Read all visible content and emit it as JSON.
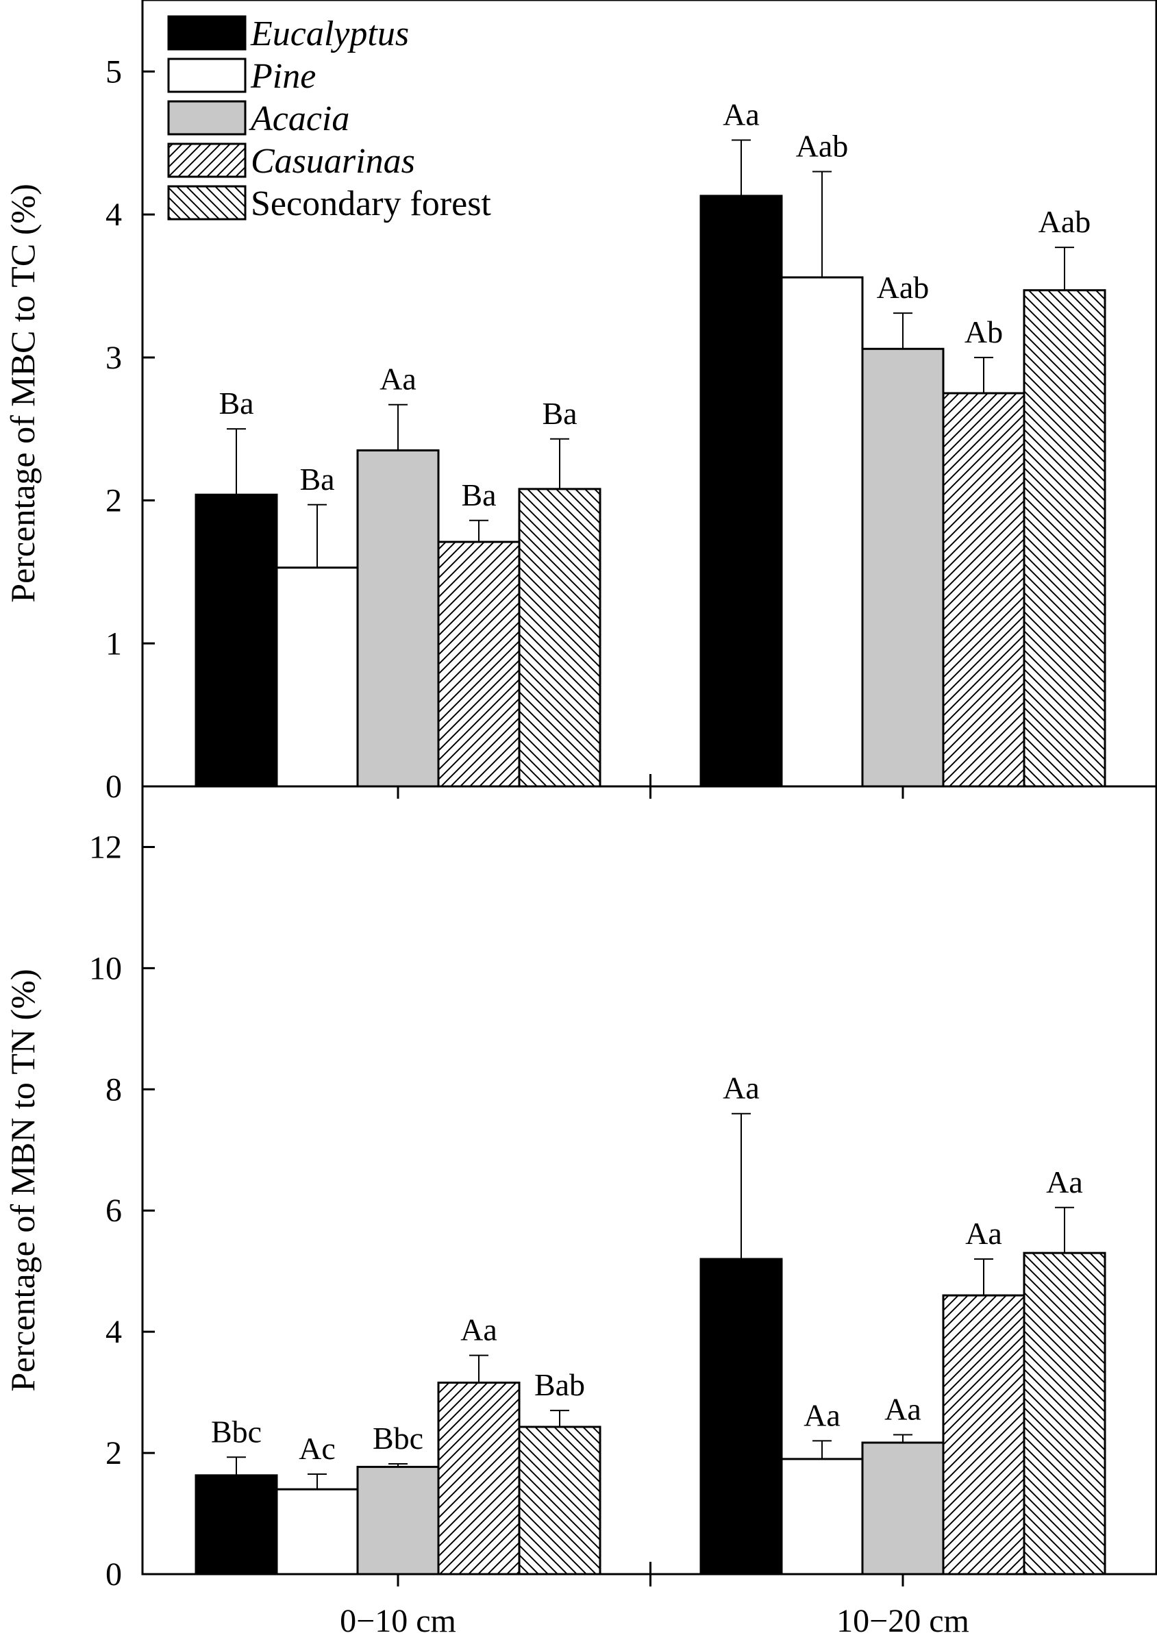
{
  "chart_data": [
    {
      "type": "bar",
      "panel": "top",
      "ylabel": "Percentage of MBC to TC (%)",
      "ylim": [
        0,
        5.5
      ],
      "yticks": [
        0,
        1,
        2,
        3,
        4,
        5
      ],
      "grid": false,
      "categories": [
        "0−10 cm",
        "10−20 cm"
      ],
      "series": [
        {
          "name": "Eucalyptus",
          "values": [
            2.04,
            4.13
          ],
          "errors": [
            0.46,
            0.39
          ],
          "labels": [
            "Ba",
            "Aa"
          ]
        },
        {
          "name": "Pine",
          "values": [
            1.53,
            3.56
          ],
          "errors": [
            0.44,
            0.74
          ],
          "labels": [
            "Ba",
            "Aab"
          ]
        },
        {
          "name": "Acacia",
          "values": [
            2.35,
            3.06
          ],
          "errors": [
            0.32,
            0.25
          ],
          "labels": [
            "Aa",
            "Aab"
          ]
        },
        {
          "name": "Casuarinas",
          "values": [
            1.71,
            2.75
          ],
          "errors": [
            0.15,
            0.25
          ],
          "labels": [
            "Ba",
            "Ab"
          ]
        },
        {
          "name": "Secondary forest",
          "values": [
            2.08,
            3.47
          ],
          "errors": [
            0.35,
            0.3
          ],
          "labels": [
            "Ba",
            "Aab"
          ]
        }
      ],
      "legend": {
        "placement": "top-left",
        "entries": [
          {
            "label": "Eucalyptus",
            "italic": true
          },
          {
            "label": "Pine",
            "italic": true
          },
          {
            "label": "Acacia",
            "italic": true
          },
          {
            "label": "Casuarinas",
            "italic": true
          },
          {
            "label": "Secondary forest",
            "italic": false
          }
        ]
      }
    },
    {
      "type": "bar",
      "panel": "bottom",
      "ylabel": "Percentage of MBN to TN (%)",
      "ylim": [
        0,
        13
      ],
      "yticks": [
        0,
        2,
        4,
        6,
        8,
        10,
        12
      ],
      "grid": false,
      "categories": [
        "0−10 cm",
        "10−20 cm"
      ],
      "series": [
        {
          "name": "Eucalyptus",
          "values": [
            1.63,
            5.2
          ],
          "errors": [
            0.3,
            2.4
          ],
          "labels": [
            "Bbc",
            "Aa"
          ]
        },
        {
          "name": "Pine",
          "values": [
            1.4,
            1.9
          ],
          "errors": [
            0.25,
            0.3
          ],
          "labels": [
            "Ac",
            "Aa"
          ]
        },
        {
          "name": "Acacia",
          "values": [
            1.77,
            2.17
          ],
          "errors": [
            0.05,
            0.13
          ],
          "labels": [
            "Bbc",
            "Aa"
          ]
        },
        {
          "name": "Casuarinas",
          "values": [
            3.16,
            4.6
          ],
          "errors": [
            0.45,
            0.6
          ],
          "labels": [
            "Aa",
            "Aa"
          ]
        },
        {
          "name": "Secondary forest",
          "values": [
            2.43,
            5.3
          ],
          "errors": [
            0.27,
            0.75
          ],
          "labels": [
            "Bab",
            "Aa"
          ]
        }
      ]
    }
  ],
  "series_styles": [
    {
      "fill": "solid",
      "color": "#000000"
    },
    {
      "fill": "solid",
      "color": "#ffffff"
    },
    {
      "fill": "solid",
      "color": "#c8c8c8"
    },
    {
      "fill": "hatch-forward",
      "color": "#ffffff"
    },
    {
      "fill": "hatch-back",
      "color": "#ffffff"
    }
  ]
}
